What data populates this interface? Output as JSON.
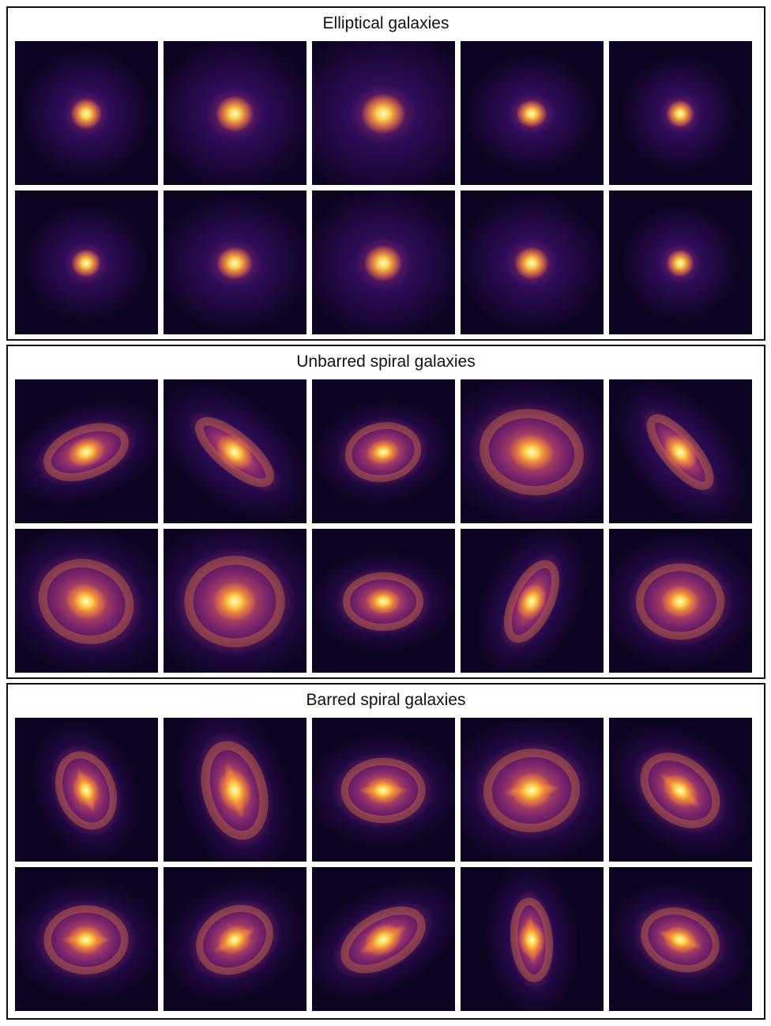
{
  "colormap": {
    "name": "inferno",
    "background": "#0c0420",
    "halo": "#3a0f6b",
    "mid": "#b5367a",
    "arm": "#f2843a",
    "core": "#fffbd2"
  },
  "panels": [
    {
      "title": "Elliptical galaxies",
      "tiles": [
        {
          "type": "elliptical",
          "tilt": 0,
          "axis_ratio": 1.0,
          "size": 0.9
        },
        {
          "type": "elliptical",
          "tilt": 0,
          "axis_ratio": 0.95,
          "size": 1.1
        },
        {
          "type": "elliptical",
          "tilt": 0,
          "axis_ratio": 0.9,
          "size": 1.3
        },
        {
          "type": "elliptical",
          "tilt": 0,
          "axis_ratio": 0.9,
          "size": 0.9
        },
        {
          "type": "elliptical",
          "tilt": 0,
          "axis_ratio": 1.0,
          "size": 0.8
        },
        {
          "type": "elliptical",
          "tilt": 0,
          "axis_ratio": 0.95,
          "size": 0.85
        },
        {
          "type": "elliptical",
          "tilt": 0,
          "axis_ratio": 0.9,
          "size": 1.05
        },
        {
          "type": "elliptical",
          "tilt": 0,
          "axis_ratio": 0.95,
          "size": 1.1
        },
        {
          "type": "elliptical",
          "tilt": 0,
          "axis_ratio": 0.95,
          "size": 1.0
        },
        {
          "type": "elliptical",
          "tilt": 0,
          "axis_ratio": 1.0,
          "size": 0.8
        }
      ]
    },
    {
      "title": "Unbarred spiral galaxies",
      "tiles": [
        {
          "type": "spiral",
          "tilt": -20,
          "axis_ratio": 0.55,
          "size": 1.1
        },
        {
          "type": "spiral",
          "tilt": 40,
          "axis_ratio": 0.35,
          "size": 1.2
        },
        {
          "type": "spiral",
          "tilt": -10,
          "axis_ratio": 0.75,
          "size": 0.95
        },
        {
          "type": "spiral",
          "tilt": 10,
          "axis_ratio": 0.8,
          "size": 1.3
        },
        {
          "type": "spiral",
          "tilt": 50,
          "axis_ratio": 0.35,
          "size": 1.15
        },
        {
          "type": "spiral",
          "tilt": 20,
          "axis_ratio": 0.85,
          "size": 1.2
        },
        {
          "type": "spiral",
          "tilt": 0,
          "axis_ratio": 0.9,
          "size": 1.25
        },
        {
          "type": "spiral",
          "tilt": 0,
          "axis_ratio": 0.7,
          "size": 1.0
        },
        {
          "type": "spiral",
          "tilt": -65,
          "axis_ratio": 0.45,
          "size": 1.1
        },
        {
          "type": "spiral",
          "tilt": 0,
          "axis_ratio": 0.85,
          "size": 1.1
        }
      ]
    },
    {
      "title": "Barred spiral galaxies",
      "tiles": [
        {
          "type": "barred",
          "tilt": 70,
          "axis_ratio": 0.7,
          "size": 1.0
        },
        {
          "type": "barred",
          "tilt": 75,
          "axis_ratio": 0.6,
          "size": 1.25
        },
        {
          "type": "barred",
          "tilt": 0,
          "axis_ratio": 0.75,
          "size": 1.05
        },
        {
          "type": "barred",
          "tilt": -5,
          "axis_ratio": 0.85,
          "size": 1.2
        },
        {
          "type": "barred",
          "tilt": 40,
          "axis_ratio": 0.7,
          "size": 1.1
        },
        {
          "type": "barred",
          "tilt": 0,
          "axis_ratio": 0.8,
          "size": 1.05
        },
        {
          "type": "barred",
          "tilt": -30,
          "axis_ratio": 0.8,
          "size": 1.0
        },
        {
          "type": "barred",
          "tilt": -30,
          "axis_ratio": 0.55,
          "size": 1.15
        },
        {
          "type": "barred",
          "tilt": 85,
          "axis_ratio": 0.45,
          "size": 1.05
        },
        {
          "type": "barred",
          "tilt": 20,
          "axis_ratio": 0.75,
          "size": 1.0
        }
      ]
    }
  ]
}
